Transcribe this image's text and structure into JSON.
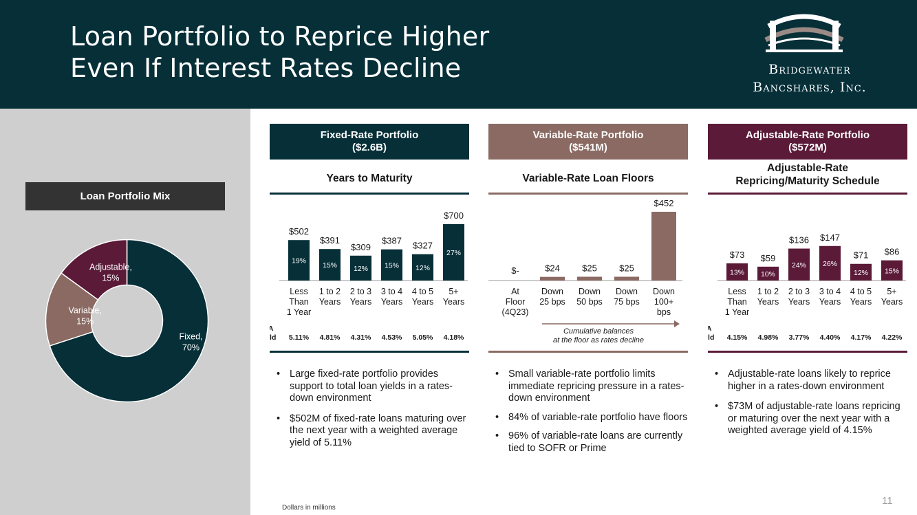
{
  "header": {
    "title_line1": "Loan Portfolio to Reprice Higher",
    "title_line2": "Even If Interest Rates Decline",
    "logo_line1": "Bridgewater",
    "logo_line2": "Bancshares, Inc."
  },
  "colors": {
    "dark_teal": "#062f38",
    "variable_taupe": "#8a6a62",
    "adjustable_maroon": "#5a1a38",
    "left_panel_gray": "#cfcfcf"
  },
  "loan_mix": {
    "label": "Loan Portfolio Mix",
    "chart_data": {
      "type": "pie",
      "slices": [
        {
          "name": "Fixed",
          "label_line1": "Fixed,",
          "label_line2": "70%",
          "value": 70,
          "color": "#062f38"
        },
        {
          "name": "Variable",
          "label_line1": "Variable,",
          "label_line2": "15%",
          "value": 15,
          "color": "#8a6a62"
        },
        {
          "name": "Adjustable",
          "label_line1": "Adjustable,",
          "label_line2": "15%",
          "value": 15,
          "color": "#5a1a38"
        }
      ]
    }
  },
  "fixed": {
    "head_line1": "Fixed-Rate Portfolio",
    "head_line2": "($2.6B)",
    "subtitle": "Years to Maturity",
    "yield_label_line1": "WA",
    "yield_label_line2": "Yield",
    "chart_data": {
      "type": "bar",
      "categories": [
        [
          "Less",
          "Than",
          "1 Year"
        ],
        [
          "1 to 2",
          "Years"
        ],
        [
          "2 to 3",
          "Years"
        ],
        [
          "3 to 4",
          "Years"
        ],
        [
          "4 to 5",
          "Years"
        ],
        [
          "5+",
          "Years"
        ]
      ],
      "values": [
        502,
        391,
        309,
        387,
        327,
        700
      ],
      "value_labels": [
        "$502",
        "$391",
        "$309",
        "$387",
        "$327",
        "$700"
      ],
      "pct_labels": [
        "19%",
        "15%",
        "12%",
        "15%",
        "12%",
        "27%"
      ],
      "yields": [
        "5.11%",
        "4.81%",
        "4.31%",
        "4.53%",
        "5.05%",
        "4.18%"
      ]
    },
    "bullets": [
      "Large fixed-rate portfolio provides support to total loan yields in a rates-down environment",
      "$502M of fixed-rate loans maturing over the next year with a weighted average yield of 5.11%"
    ]
  },
  "variable": {
    "head_line1": "Variable-Rate Portfolio",
    "head_line2": "($541M)",
    "subtitle": "Variable-Rate Loan Floors",
    "arrow_note_line1": "Cumulative balances",
    "arrow_note_line2": "at the floor as rates decline",
    "chart_data": {
      "type": "bar",
      "categories": [
        [
          "At",
          "Floor",
          "(4Q23)"
        ],
        [
          "Down",
          "25 bps"
        ],
        [
          "Down",
          "50 bps"
        ],
        [
          "Down",
          "75 bps"
        ],
        [
          "Down",
          "100+",
          "bps"
        ]
      ],
      "values": [
        0,
        24,
        25,
        25,
        452
      ],
      "value_labels": [
        "$-",
        "$24",
        "$25",
        "$25",
        "$452"
      ]
    },
    "bullets": [
      "Small variable-rate portfolio limits immediate repricing pressure in a rates-down environment",
      "84% of variable-rate portfolio have floors",
      "96% of variable-rate loans are currently tied to SOFR or Prime"
    ]
  },
  "adjustable": {
    "head_line1": "Adjustable-Rate Portfolio",
    "head_line2": "($572M)",
    "subtitle_line1": "Adjustable-Rate",
    "subtitle_line2": "Repricing/Maturity Schedule",
    "yield_label_line1": "WA",
    "yield_label_line2": "Yield",
    "chart_data": {
      "type": "bar",
      "categories": [
        [
          "Less",
          "Than",
          "1 Year"
        ],
        [
          "1 to 2",
          "Years"
        ],
        [
          "2 to 3",
          "Years"
        ],
        [
          "3 to 4",
          "Years"
        ],
        [
          "4 to 5",
          "Years"
        ],
        [
          "5+",
          "Years"
        ]
      ],
      "values": [
        73,
        59,
        136,
        147,
        71,
        86
      ],
      "value_labels": [
        "$73",
        "$59",
        "$136",
        "$147",
        "$71",
        "$86"
      ],
      "pct_labels": [
        "13%",
        "10%",
        "24%",
        "26%",
        "12%",
        "15%"
      ],
      "yields": [
        "4.15%",
        "4.98%",
        "3.77%",
        "4.40%",
        "4.17%",
        "4.22%"
      ]
    },
    "bullets": [
      "Adjustable-rate loans likely to reprice higher in a rates-down environment",
      "$73M of adjustable-rate loans repricing or maturing over the next year with a weighted average yield of 4.15%"
    ]
  },
  "footer": {
    "footnote": "Dollars in millions",
    "page_number": "11"
  }
}
